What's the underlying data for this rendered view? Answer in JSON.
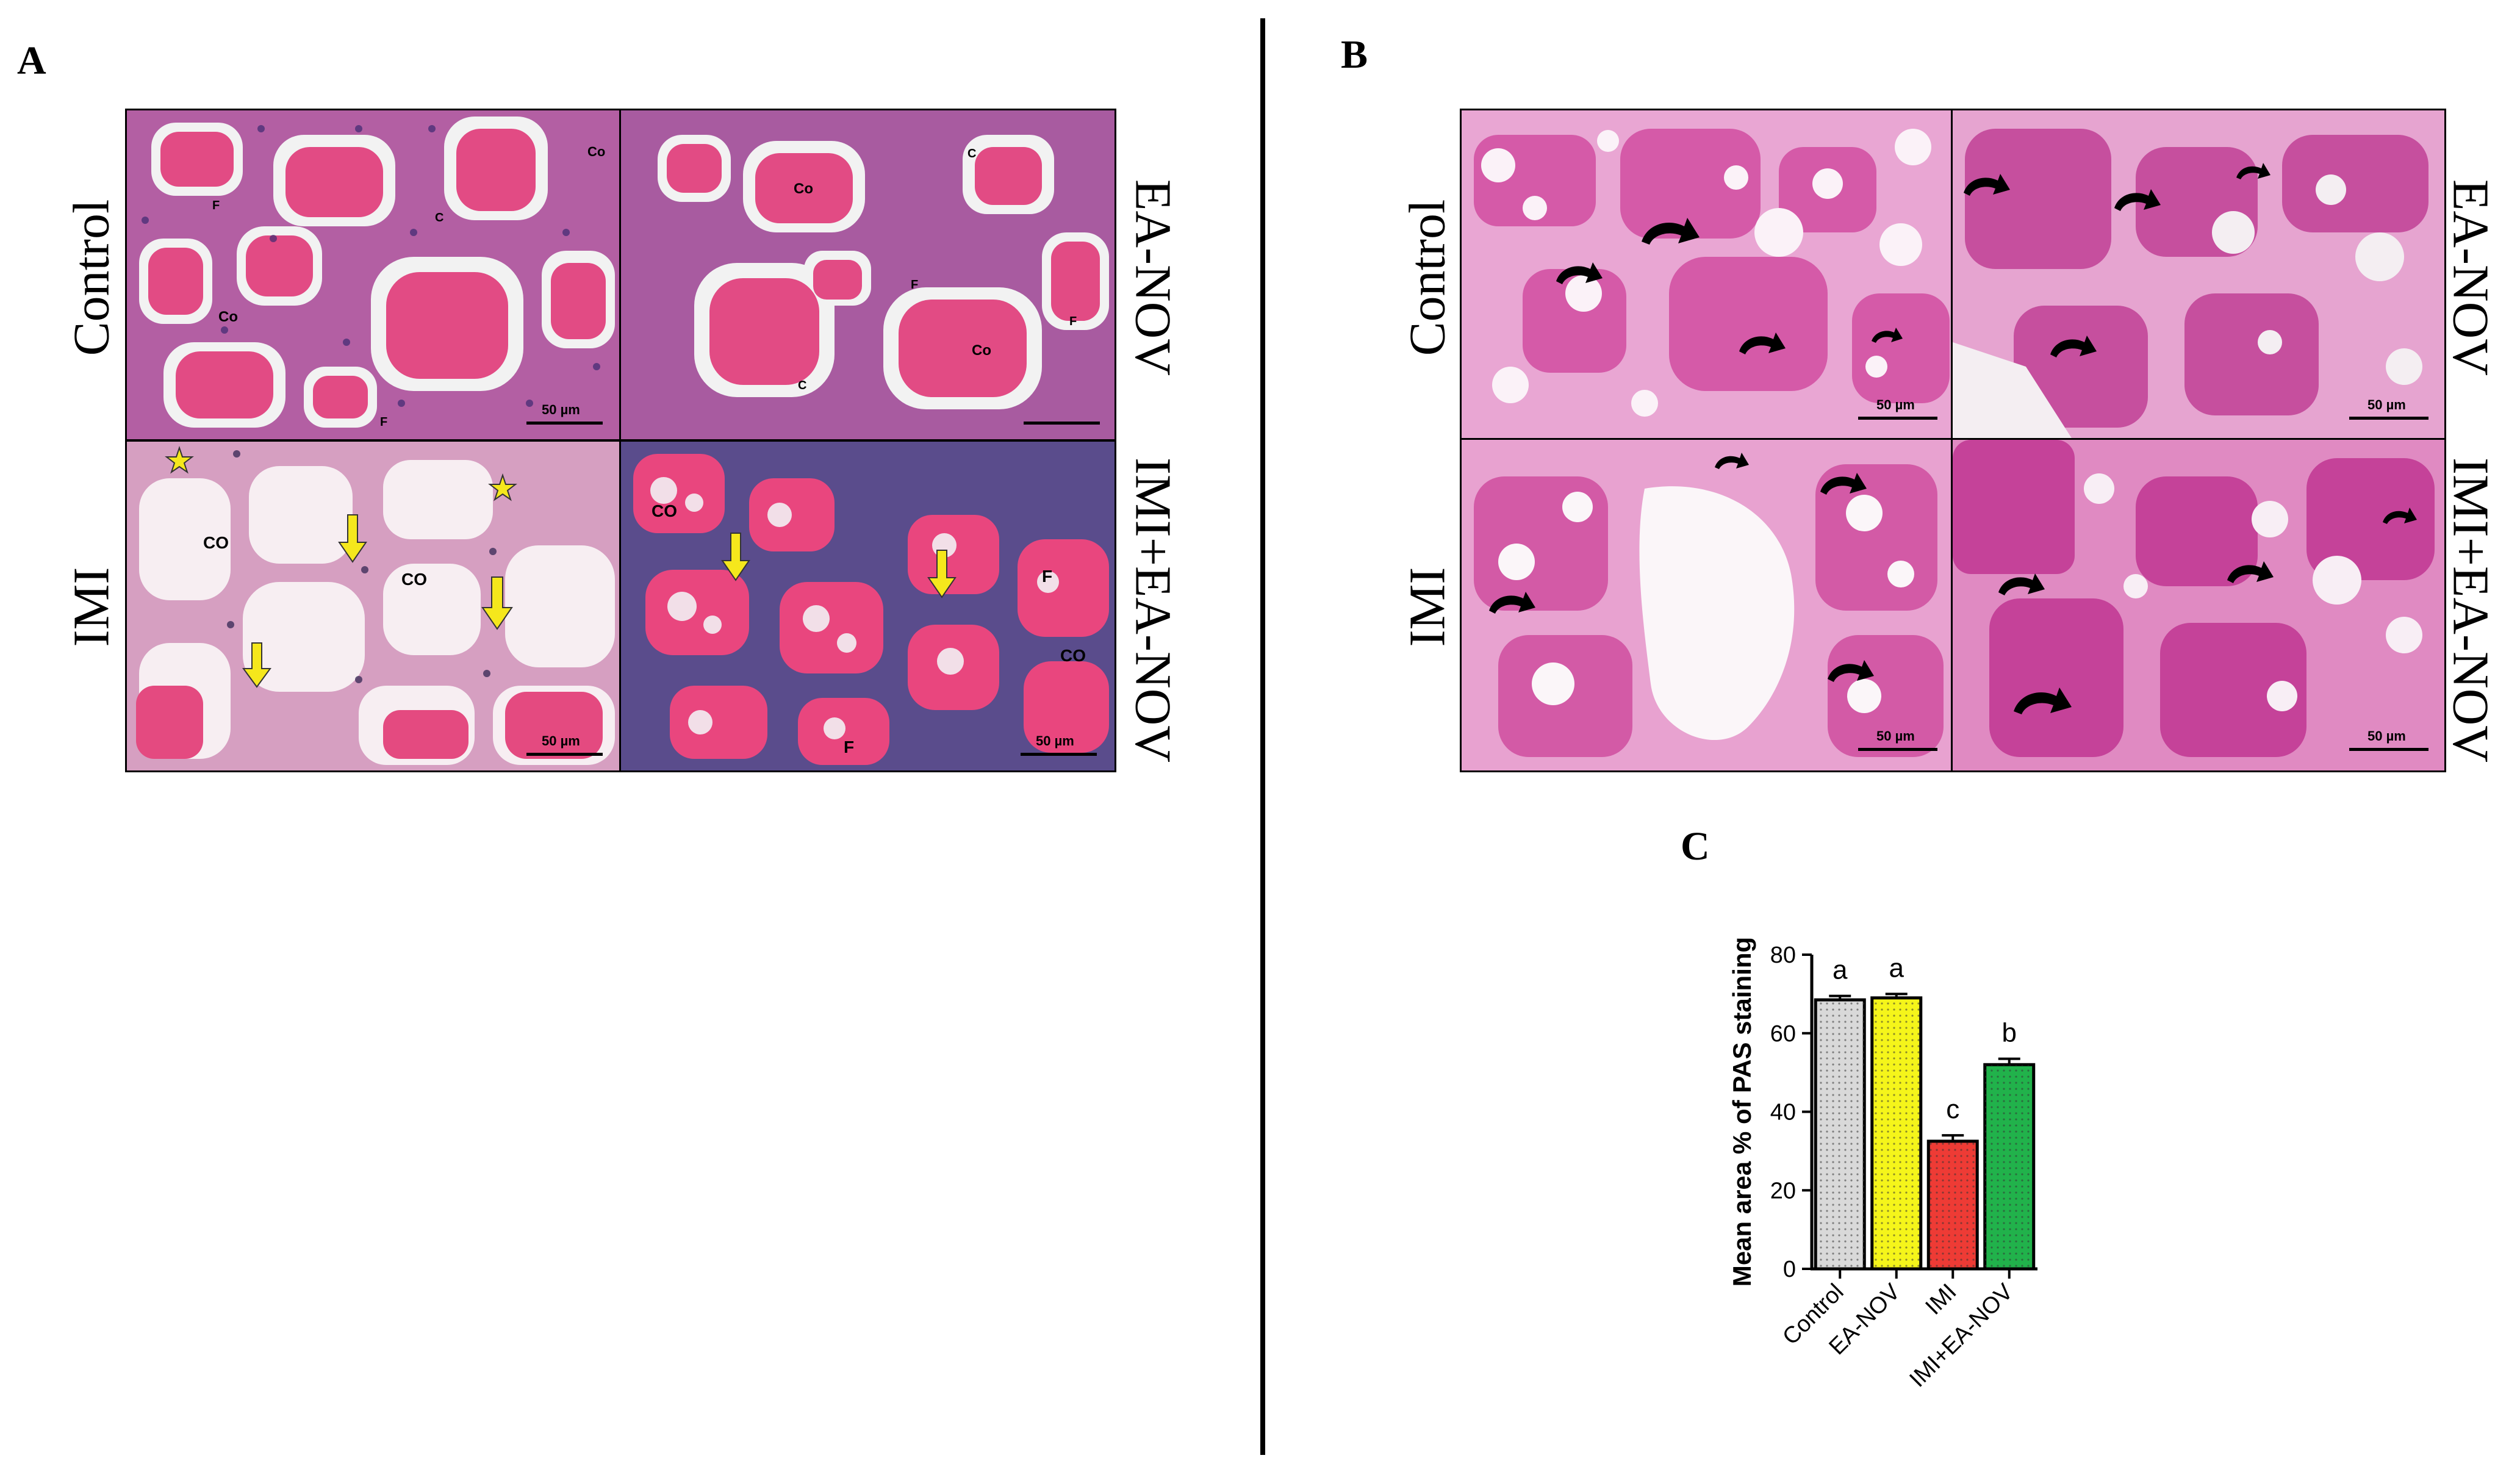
{
  "panels": {
    "a": {
      "letter": "A",
      "row_labels": [
        "Control",
        "IMI"
      ],
      "col_labels_right": [
        "EA-NOV",
        "IMI+EA-NOV"
      ],
      "scale_text": "50 µm",
      "markers": {
        "colloid_upper": "Co",
        "colloid_lower": "CO",
        "follicle": "F",
        "c_cell": "C"
      },
      "colors": {
        "tissue_bg": "#c95aa8",
        "colloid": "#e8457c",
        "nuclei": "#3a2a6e",
        "arrow": "#f5e71c"
      }
    },
    "b": {
      "letter": "B",
      "row_labels": [
        "Control",
        "IMI"
      ],
      "col_labels_right": [
        "EA-NOV",
        "IMI+EA-NOV"
      ],
      "scale_text": "50 µm",
      "colors": {
        "tissue_bg": "#e08ac0",
        "colloid": "#d24fa0"
      }
    },
    "c": {
      "letter": "C"
    }
  },
  "chart_data": {
    "type": "bar",
    "categories": [
      "Control",
      "EA-NOV",
      "IMI",
      "IMI+EA-NOV"
    ],
    "values": [
      68.5,
      69,
      32.5,
      52
    ],
    "errors": [
      1.0,
      1.0,
      1.5,
      1.5
    ],
    "significance": [
      "a",
      "a",
      "c",
      "b"
    ],
    "colors": [
      "#d9d9d9",
      "#f5f51a",
      "#ee3b35",
      "#21b24b"
    ],
    "ylabel": "Mean area % of PAS staining",
    "ylim": [
      0,
      80
    ],
    "yticks": [
      "0",
      "20",
      "40",
      "60",
      "80"
    ]
  }
}
